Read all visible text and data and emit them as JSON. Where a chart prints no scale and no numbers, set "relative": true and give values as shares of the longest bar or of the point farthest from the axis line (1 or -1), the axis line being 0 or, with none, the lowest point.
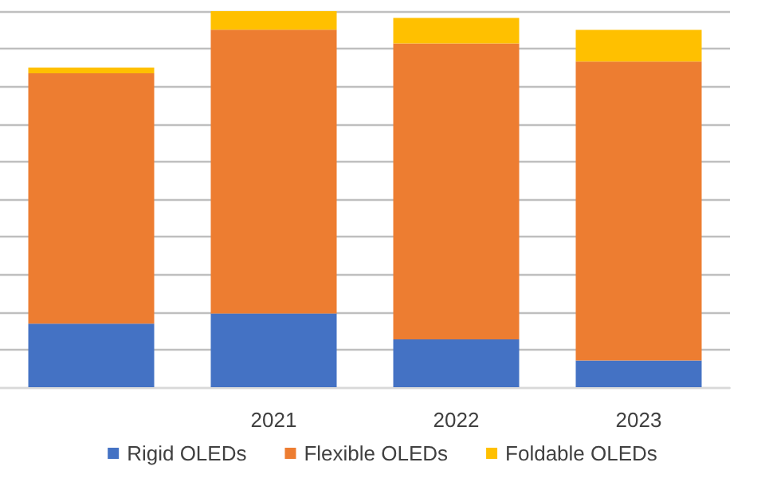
{
  "chart_data": {
    "type": "bar",
    "stacked": true,
    "relative": true,
    "categories": [
      null,
      "2021",
      "2022",
      "2023"
    ],
    "series": [
      {
        "name": "Rigid OLEDs",
        "color": "#4472c4",
        "values": [
          0.169,
          0.196,
          0.127,
          0.071
        ]
      },
      {
        "name": "Flexible OLEDs",
        "color": "#ed7d31",
        "values": [
          0.666,
          0.755,
          0.787,
          0.795
        ]
      },
      {
        "name": "Foldable OLEDs",
        "color": "#ffc000",
        "values": [
          0.015,
          0.049,
          0.068,
          0.084
        ]
      }
    ],
    "grid": "y",
    "legend": "bottom"
  }
}
